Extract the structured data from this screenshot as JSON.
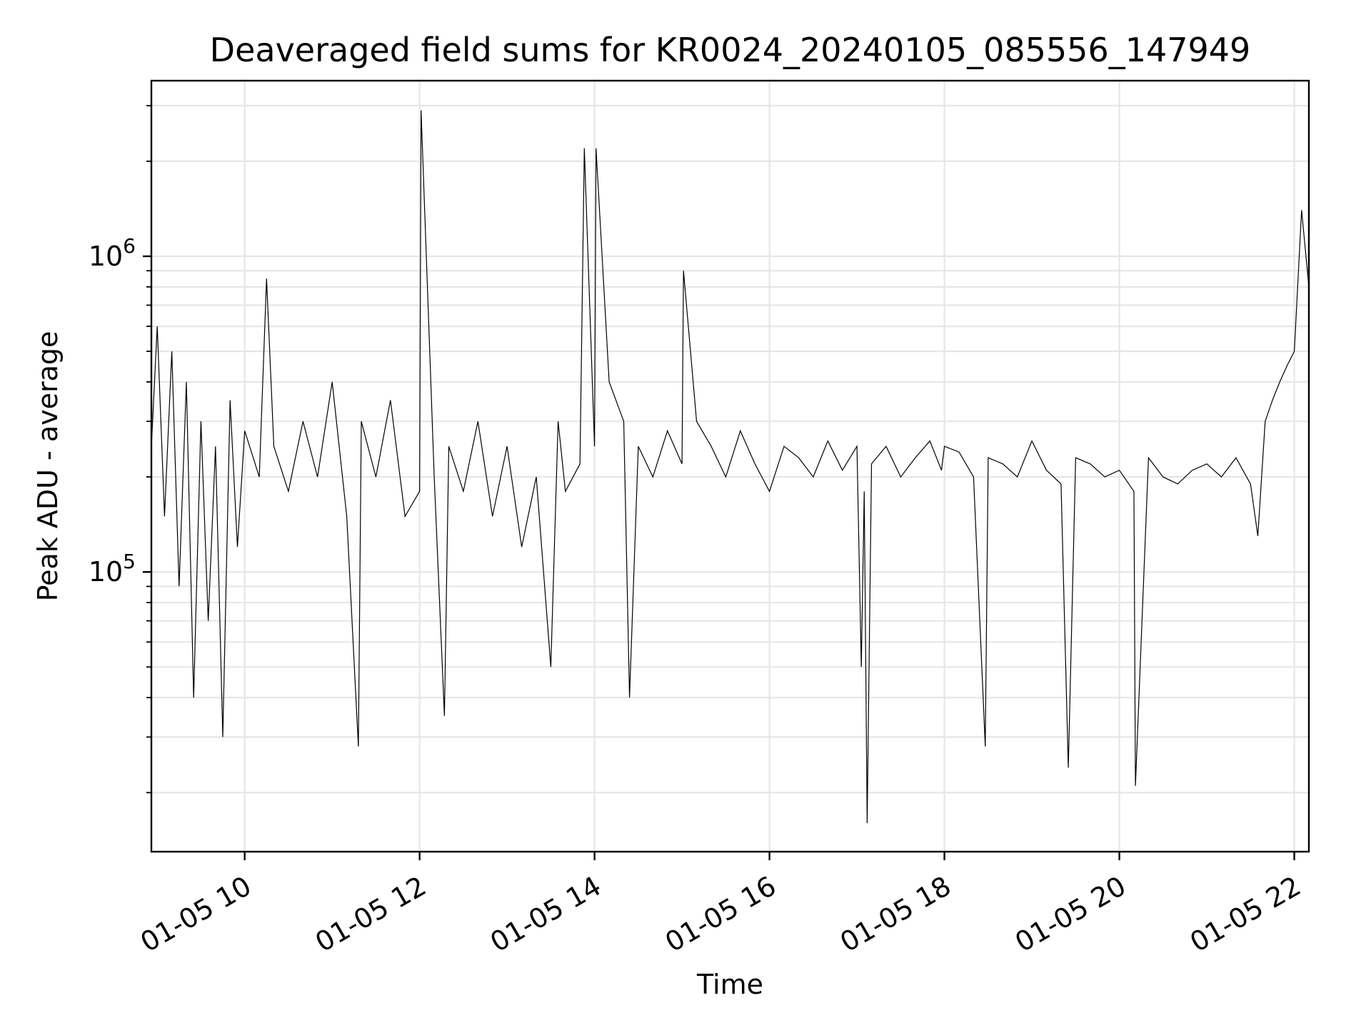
{
  "chart_data": {
    "type": "line",
    "title": "Deaveraged field sums for KR0024_20240105_085556_147949",
    "xlabel": "Time",
    "ylabel": "Peak ADU - average",
    "yscale": "log",
    "xlim": [
      "2024-01-05 08:56",
      "2024-01-05 22:10"
    ],
    "ylim": [
      13000,
      3600000
    ],
    "grid": true,
    "x_tick_labels": [
      "01-05 10",
      "01-05 12",
      "01-05 14",
      "01-05 16",
      "01-05 18",
      "01-05 20",
      "01-05 22"
    ],
    "x_ticks": [
      "2024-01-05 10:00",
      "2024-01-05 12:00",
      "2024-01-05 14:00",
      "2024-01-05 16:00",
      "2024-01-05 18:00",
      "2024-01-05 20:00",
      "2024-01-05 22:00"
    ],
    "y_ticks": [
      {
        "value": 100000,
        "base": "10",
        "exponent": "5"
      },
      {
        "value": 1000000,
        "base": "10",
        "exponent": "6"
      }
    ],
    "series": [
      {
        "color": "#000000",
        "x": [
          "2024-01-05 08:56",
          "2024-01-05 09:00",
          "2024-01-05 09:05",
          "2024-01-05 09:10",
          "2024-01-05 09:15",
          "2024-01-05 09:20",
          "2024-01-05 09:25",
          "2024-01-05 09:30",
          "2024-01-05 09:35",
          "2024-01-05 09:40",
          "2024-01-05 09:45",
          "2024-01-05 09:50",
          "2024-01-05 09:55",
          "2024-01-05 10:00",
          "2024-01-05 10:10",
          "2024-01-05 10:15",
          "2024-01-05 10:20",
          "2024-01-05 10:30",
          "2024-01-05 10:40",
          "2024-01-05 10:50",
          "2024-01-05 11:00",
          "2024-01-05 11:10",
          "2024-01-05 11:18",
          "2024-01-05 11:20",
          "2024-01-05 11:30",
          "2024-01-05 11:40",
          "2024-01-05 11:50",
          "2024-01-05 12:00",
          "2024-01-05 12:01",
          "2024-01-05 12:10",
          "2024-01-05 12:17",
          "2024-01-05 12:20",
          "2024-01-05 12:30",
          "2024-01-05 12:40",
          "2024-01-05 12:50",
          "2024-01-05 13:00",
          "2024-01-05 13:10",
          "2024-01-05 13:20",
          "2024-01-05 13:30",
          "2024-01-05 13:35",
          "2024-01-05 13:40",
          "2024-01-05 13:50",
          "2024-01-05 13:53",
          "2024-01-05 14:00",
          "2024-01-05 14:01",
          "2024-01-05 14:10",
          "2024-01-05 14:20",
          "2024-01-05 14:24",
          "2024-01-05 14:30",
          "2024-01-05 14:40",
          "2024-01-05 14:50",
          "2024-01-05 15:00",
          "2024-01-05 15:01",
          "2024-01-05 15:10",
          "2024-01-05 15:20",
          "2024-01-05 15:30",
          "2024-01-05 15:40",
          "2024-01-05 15:50",
          "2024-01-05 16:00",
          "2024-01-05 16:10",
          "2024-01-05 16:20",
          "2024-01-05 16:30",
          "2024-01-05 16:40",
          "2024-01-05 16:50",
          "2024-01-05 17:00",
          "2024-01-05 17:03",
          "2024-01-05 17:05",
          "2024-01-05 17:07",
          "2024-01-05 17:10",
          "2024-01-05 17:20",
          "2024-01-05 17:30",
          "2024-01-05 17:40",
          "2024-01-05 17:50",
          "2024-01-05 17:58",
          "2024-01-05 18:00",
          "2024-01-05 18:10",
          "2024-01-05 18:20",
          "2024-01-05 18:28",
          "2024-01-05 18:30",
          "2024-01-05 18:40",
          "2024-01-05 18:50",
          "2024-01-05 19:00",
          "2024-01-05 19:10",
          "2024-01-05 19:20",
          "2024-01-05 19:25",
          "2024-01-05 19:30",
          "2024-01-05 19:40",
          "2024-01-05 19:50",
          "2024-01-05 20:00",
          "2024-01-05 20:10",
          "2024-01-05 20:11",
          "2024-01-05 20:20",
          "2024-01-05 20:30",
          "2024-01-05 20:40",
          "2024-01-05 20:50",
          "2024-01-05 21:00",
          "2024-01-05 21:10",
          "2024-01-05 21:20",
          "2024-01-05 21:30",
          "2024-01-05 21:35",
          "2024-01-05 21:40",
          "2024-01-05 21:45",
          "2024-01-05 21:50",
          "2024-01-05 21:55",
          "2024-01-05 22:00",
          "2024-01-05 22:05",
          "2024-01-05 22:10"
        ],
        "y": [
          250000,
          600000,
          150000,
          500000,
          90000,
          400000,
          40000,
          300000,
          70000,
          250000,
          30000,
          350000,
          120000,
          280000,
          200000,
          850000,
          250000,
          180000,
          300000,
          200000,
          400000,
          150000,
          28000,
          300000,
          200000,
          350000,
          150000,
          180000,
          2900000,
          200000,
          35000,
          250000,
          180000,
          300000,
          150000,
          250000,
          120000,
          200000,
          50000,
          300000,
          180000,
          220000,
          2200000,
          250000,
          2200000,
          400000,
          300000,
          40000,
          250000,
          200000,
          280000,
          220000,
          900000,
          300000,
          250000,
          200000,
          280000,
          220000,
          180000,
          250000,
          230000,
          200000,
          260000,
          210000,
          250000,
          50000,
          180000,
          16000,
          220000,
          250000,
          200000,
          230000,
          260000,
          210000,
          250000,
          240000,
          200000,
          28000,
          230000,
          220000,
          200000,
          260000,
          210000,
          190000,
          24000,
          230000,
          220000,
          200000,
          210000,
          180000,
          21000,
          230000,
          200000,
          190000,
          210000,
          220000,
          200000,
          230000,
          190000,
          130000,
          300000,
          350000,
          400000,
          450000,
          500000,
          1400000,
          800000
        ]
      }
    ]
  }
}
